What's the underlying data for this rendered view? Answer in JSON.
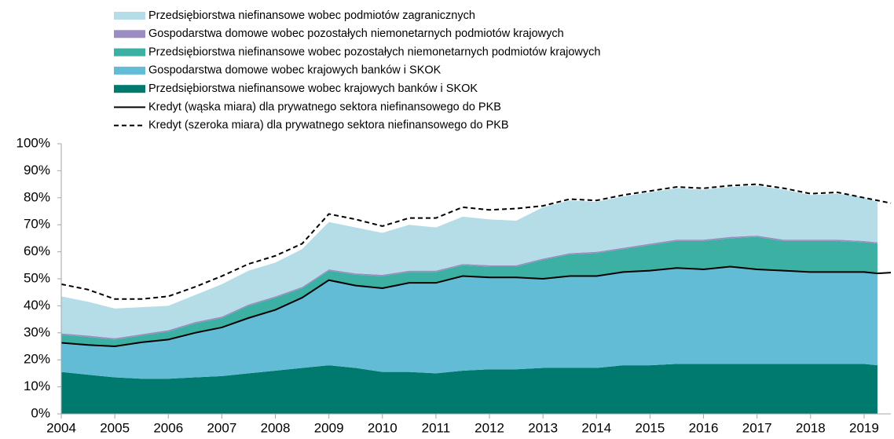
{
  "chart_data": {
    "type": "area",
    "x": [
      2004,
      2004.5,
      2005,
      2005.5,
      2006,
      2006.5,
      2007,
      2007.5,
      2008,
      2008.5,
      2009,
      2009.5,
      2010,
      2010.5,
      2011,
      2011.5,
      2012,
      2012.5,
      2013,
      2013.5,
      2014,
      2014.5,
      2015,
      2015.5,
      2016,
      2016.5,
      2017,
      2017.5,
      2018,
      2018.5,
      2019,
      2019.25,
      2019.5
    ],
    "series": [
      {
        "name": "Przedsiębiorstwa niefinansowe wobec krajowych banków i SKOK",
        "type": "area",
        "color": "#007a6e",
        "values": [
          15.5,
          14.5,
          13.5,
          13,
          13,
          13.5,
          14,
          15,
          16,
          17,
          18,
          17,
          15.5,
          15.5,
          15,
          16,
          16.5,
          16.5,
          17,
          17,
          17,
          18,
          18,
          18.5,
          18.5,
          18.5,
          18.5,
          18.5,
          18.5,
          18.5,
          18.5,
          18,
          null
        ]
      },
      {
        "name": "Gospodarstwa domowe wobec krajowych banków i SKOK",
        "type": "area",
        "color": "#63bcd5",
        "values": [
          10.8,
          11,
          11.5,
          13.5,
          14.5,
          16.5,
          18,
          20.5,
          22.5,
          26,
          31.5,
          30.5,
          31,
          33,
          33.5,
          35,
          34,
          34,
          33,
          34,
          34,
          34.5,
          35,
          35.5,
          35,
          36,
          35,
          34.5,
          34,
          34,
          34,
          34,
          null
        ]
      },
      {
        "name": "Przedsiębiorstwa niefinansowe wobec pozostałych niemonetarnych podmiotów krajowych",
        "type": "area",
        "color": "#3cb0a2",
        "values": [
          3,
          3,
          2.5,
          2.5,
          3,
          3.5,
          3.5,
          4.5,
          4.5,
          3.5,
          3.5,
          4,
          4.5,
          4,
          4,
          4,
          4,
          4,
          7,
          8,
          8.5,
          8.5,
          9.5,
          10,
          10.5,
          10.5,
          12,
          11,
          11.5,
          11.5,
          11,
          11,
          null
        ]
      },
      {
        "name": "Gospodarstwa domowe wobec pozostałych niemonetarnych podmiotów krajowych",
        "type": "area",
        "color": "#9b8dc2",
        "values": [
          0.5,
          0.5,
          0.5,
          0.5,
          0.5,
          0.5,
          0.5,
          0.5,
          0.5,
          0.5,
          0.5,
          0.5,
          0.5,
          0.5,
          0.5,
          0.5,
          0.5,
          0.5,
          0.5,
          0.5,
          0.5,
          0.5,
          0.5,
          0.5,
          0.5,
          0.5,
          0.5,
          0.5,
          0.5,
          0.5,
          0.5,
          0.5,
          null
        ]
      },
      {
        "name": "Przedsiębiorstwa niefinansowe wobec podmiotów zagranicznych",
        "type": "area",
        "color": "#b5dde8",
        "values": [
          13.7,
          12.5,
          11,
          10,
          9,
          10,
          12,
          12.5,
          12.5,
          14,
          17.5,
          17,
          15.5,
          17,
          16,
          17.5,
          17,
          16.5,
          19,
          19.5,
          18.5,
          19,
          19,
          19,
          18.5,
          18.5,
          18.5,
          18.5,
          16.5,
          17,
          16,
          15,
          null
        ]
      },
      {
        "name": "Kredyt (wąska miara) dla prywatnego sektora niefinansowego do PKB",
        "type": "line",
        "style": "solid",
        "color": "#000000",
        "values": [
          26.3,
          25.5,
          25,
          26.5,
          27.5,
          30,
          32,
          35.5,
          38.5,
          43,
          49.5,
          47.5,
          46.5,
          48.5,
          48.5,
          51,
          50.5,
          50.5,
          50,
          51,
          51,
          52.5,
          53,
          54,
          53.5,
          54.5,
          53.5,
          53,
          52.5,
          52.5,
          52.5,
          52,
          52.3
        ]
      },
      {
        "name": "Kredyt (szeroka miara) dla prywatnego sektora niefinansowego do PKB",
        "type": "line",
        "style": "dashed",
        "color": "#000000",
        "values": [
          48,
          46,
          42.5,
          42.5,
          43.5,
          47,
          51,
          55.5,
          58.5,
          63,
          74,
          72,
          69.5,
          72.5,
          72.5,
          76.5,
          75.5,
          76,
          77,
          79.5,
          79,
          81,
          82.5,
          84,
          83.5,
          84.5,
          85,
          83.5,
          81.5,
          82,
          80,
          79,
          78
        ]
      }
    ],
    "xlim": [
      2004,
      2019.5
    ],
    "xticks": [
      2004,
      2005,
      2006,
      2007,
      2008,
      2009,
      2010,
      2011,
      2012,
      2013,
      2014,
      2015,
      2016,
      2017,
      2018,
      2019
    ],
    "ylim": [
      0,
      100
    ],
    "yticks": [
      {
        "value": 0,
        "label": "0%"
      },
      {
        "value": 10,
        "label": "10%"
      },
      {
        "value": 20,
        "label": "20%"
      },
      {
        "value": 30,
        "label": "30%"
      },
      {
        "value": 40,
        "label": "40%"
      },
      {
        "value": 50,
        "label": "50%"
      },
      {
        "value": 60,
        "label": "60%"
      },
      {
        "value": 70,
        "label": "70%"
      },
      {
        "value": 80,
        "label": "80%"
      },
      {
        "value": 90,
        "label": "90%"
      },
      {
        "value": 100,
        "label": "100%"
      }
    ],
    "legend": "top",
    "stacked": true
  }
}
